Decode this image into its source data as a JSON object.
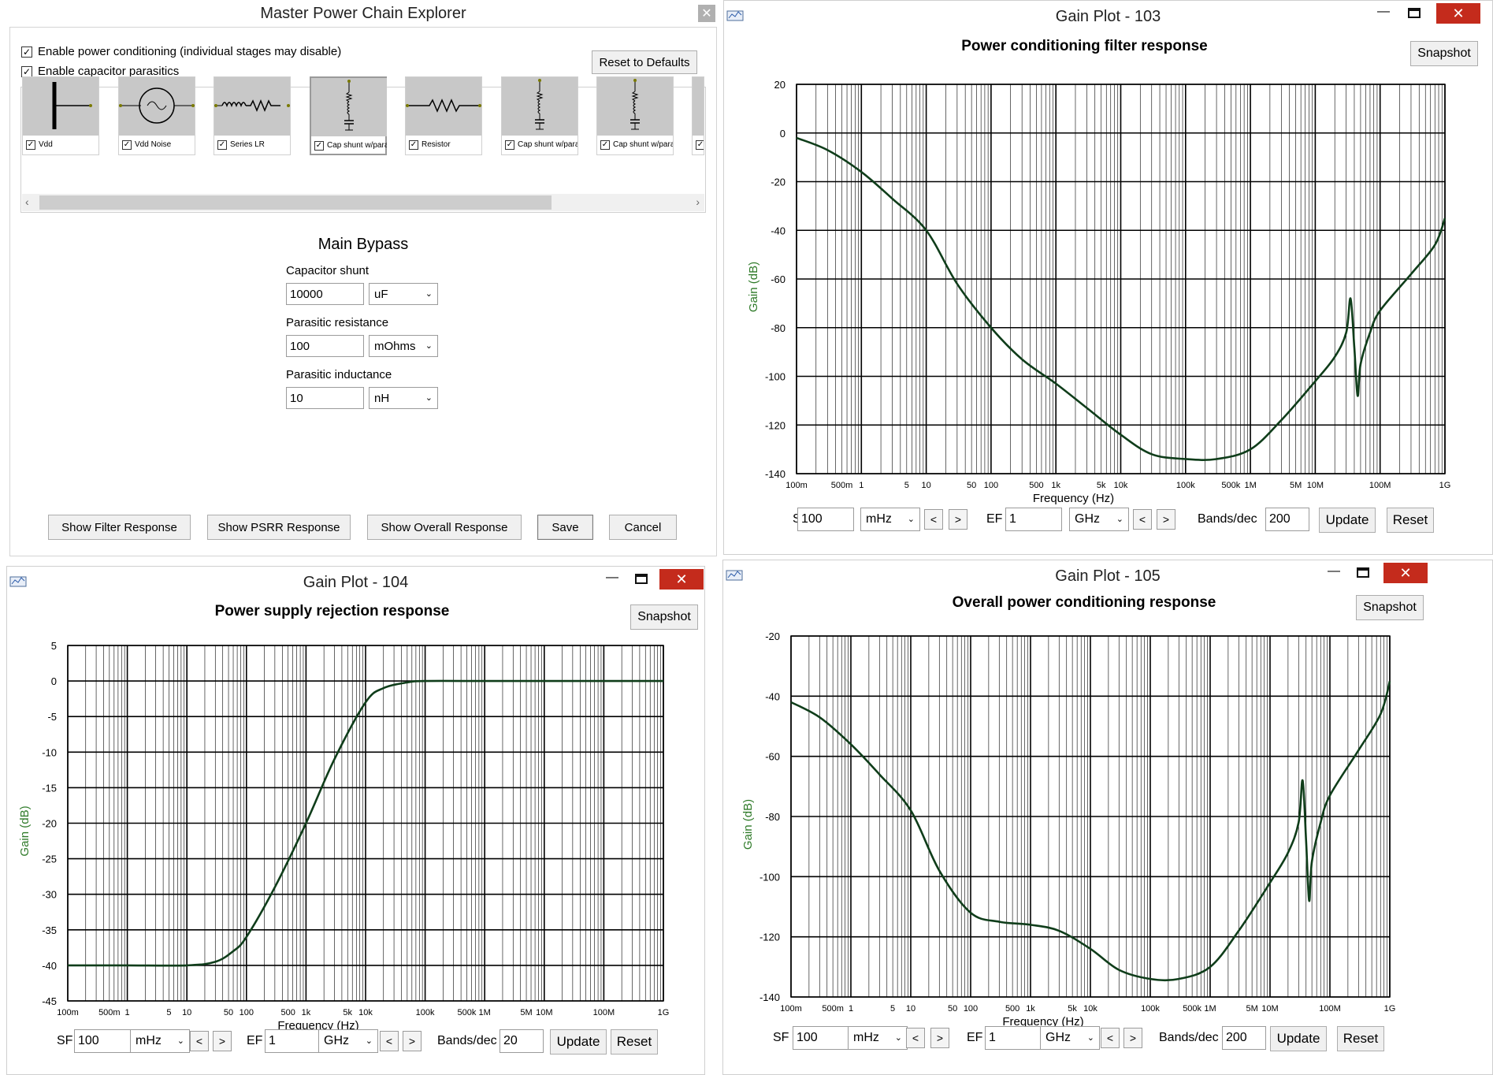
{
  "explorer": {
    "title": "Master Power Chain Explorer",
    "enable_conditioning": "Enable power conditioning (individual stages may disable)",
    "enable_parasitics": "Enable capacitor parasitics",
    "reset_defaults": "Reset to Defaults",
    "stages": [
      {
        "label": "Vdd",
        "icon": "vdd-source-icon"
      },
      {
        "label": "Vdd Noise",
        "icon": "ac-noise-source-icon"
      },
      {
        "label": "Series LR",
        "icon": "inductor-resistor-icon"
      },
      {
        "label": "Cap shunt w/paras",
        "icon": "capacitor-shunt-icon"
      },
      {
        "label": "Resistor",
        "icon": "resistor-icon"
      },
      {
        "label": "Cap shunt w/paras",
        "icon": "capacitor-shunt-icon"
      },
      {
        "label": "Cap shunt w/paras",
        "icon": "capacitor-shunt-icon"
      }
    ],
    "section_title": "Main Bypass",
    "cap_label": "Capacitor shunt",
    "cap_value": "10000",
    "cap_unit": "uF",
    "res_label": "Parasitic resistance",
    "res_value": "100",
    "res_unit": "mOhms",
    "ind_label": "Parasitic inductance",
    "ind_value": "10",
    "ind_unit": "nH",
    "buttons": {
      "filter": "Show Filter Response",
      "psrr": "Show PSRR Response",
      "overall": "Show Overall Response",
      "save": "Save",
      "cancel": "Cancel"
    }
  },
  "plots": [
    {
      "window_title": "Gain Plot - 103",
      "plot_title": "Power conditioning filter response",
      "snapshot": "Snapshot",
      "ylabel": "Gain (dB)",
      "xlabel": "Frequency (Hz)",
      "sf_label": "SF",
      "sf_value": "100",
      "sf_unit": "mHz",
      "ef_label": "EF",
      "ef_value": "1",
      "ef_unit": "GHz",
      "bands_label": "Bands/dec",
      "bands_value": "200",
      "update": "Update",
      "reset": "Reset",
      "nav_prev": "<",
      "nav_next": ">"
    },
    {
      "window_title": "Gain Plot - 104",
      "plot_title": "Power supply rejection response",
      "snapshot": "Snapshot",
      "ylabel": "Gain (dB)",
      "xlabel": "Frequency (Hz)",
      "sf_label": "SF",
      "sf_value": "100",
      "sf_unit": "mHz",
      "ef_label": "EF",
      "ef_value": "1",
      "ef_unit": "GHz",
      "bands_label": "Bands/dec",
      "bands_value": "20",
      "update": "Update",
      "reset": "Reset",
      "nav_prev": "<",
      "nav_next": ">"
    },
    {
      "window_title": "Gain Plot - 105",
      "plot_title": "Overall power conditioning response",
      "snapshot": "Snapshot",
      "ylabel": "Gain (dB)",
      "xlabel": "Frequency (Hz)",
      "sf_label": "SF",
      "sf_value": "100",
      "sf_unit": "mHz",
      "ef_label": "EF",
      "ef_value": "1",
      "ef_unit": "GHz",
      "bands_label": "Bands/dec",
      "bands_value": "200",
      "update": "Update",
      "reset": "Reset",
      "nav_prev": "<",
      "nav_next": ">"
    }
  ],
  "chart_data": [
    {
      "type": "line",
      "title": "Power conditioning filter response",
      "xlabel": "Frequency (Hz)",
      "ylabel": "Gain (dB)",
      "xscale": "log",
      "xlim": [
        0.1,
        1000000000
      ],
      "ylim": [
        -140,
        20
      ],
      "yticks": [
        20,
        0,
        -20,
        -40,
        -60,
        -80,
        -100,
        -120,
        -140
      ],
      "xtick_labels": [
        {
          "x": 0.1,
          "label": "100m"
        },
        {
          "x": 0.5,
          "label": "500m"
        },
        {
          "x": 1,
          "label": "1"
        },
        {
          "x": 5,
          "label": "5"
        },
        {
          "x": 10,
          "label": "10"
        },
        {
          "x": 50,
          "label": "50"
        },
        {
          "x": 100,
          "label": "100"
        },
        {
          "x": 500,
          "label": "500"
        },
        {
          "x": 1000,
          "label": "1k"
        },
        {
          "x": 5000,
          "label": "5k"
        },
        {
          "x": 10000,
          "label": "10k"
        },
        {
          "x": 100000,
          "label": "100k"
        },
        {
          "x": 500000,
          "label": "500k"
        },
        {
          "x": 1000000,
          "label": "1M"
        },
        {
          "x": 5000000,
          "label": "5M"
        },
        {
          "x": 10000000,
          "label": "10M"
        },
        {
          "x": 100000000,
          "label": "100M"
        },
        {
          "x": 1000000000,
          "label": "1G"
        }
      ],
      "grid": true,
      "color": "#0f3d1a",
      "series": [
        {
          "x": [
            0.1,
            0.3,
            1,
            3,
            10,
            30,
            100,
            300,
            1000,
            3000,
            10000,
            30000,
            100000,
            300000,
            1000000,
            3000000,
            10000000,
            20000000,
            30000000,
            35000000,
            40000000,
            45000000,
            50000000,
            70000000,
            100000000,
            300000000,
            700000000,
            1000000000
          ],
          "y": [
            -2,
            -7,
            -16,
            -27,
            -40,
            -62,
            -80,
            -93,
            -103,
            -113,
            -124,
            -132,
            -134,
            -134,
            -130,
            -118,
            -102,
            -92,
            -82,
            -68,
            -88,
            -108,
            -95,
            -82,
            -73,
            -58,
            -46,
            -35
          ]
        }
      ]
    },
    {
      "type": "line",
      "title": "Power supply rejection response",
      "xlabel": "Frequency (Hz)",
      "ylabel": "Gain (dB)",
      "xscale": "log",
      "xlim": [
        0.1,
        1000000000
      ],
      "ylim": [
        -45,
        5
      ],
      "yticks": [
        5,
        0,
        -5,
        -10,
        -15,
        -20,
        -25,
        -30,
        -35,
        -40,
        -45
      ],
      "xtick_labels": [
        {
          "x": 0.1,
          "label": "100m"
        },
        {
          "x": 0.5,
          "label": "500m"
        },
        {
          "x": 1,
          "label": "1"
        },
        {
          "x": 5,
          "label": "5"
        },
        {
          "x": 10,
          "label": "10"
        },
        {
          "x": 50,
          "label": "50"
        },
        {
          "x": 100,
          "label": "100"
        },
        {
          "x": 500,
          "label": "500"
        },
        {
          "x": 1000,
          "label": "1k"
        },
        {
          "x": 5000,
          "label": "5k"
        },
        {
          "x": 10000,
          "label": "10k"
        },
        {
          "x": 100000,
          "label": "100k"
        },
        {
          "x": 500000,
          "label": "500k"
        },
        {
          "x": 1000000,
          "label": "1M"
        },
        {
          "x": 5000000,
          "label": "5M"
        },
        {
          "x": 10000000,
          "label": "10M"
        },
        {
          "x": 100000000,
          "label": "100M"
        },
        {
          "x": 1000000000,
          "label": "1G"
        }
      ],
      "grid": true,
      "color": "#0f3d1a",
      "series": [
        {
          "x": [
            0.1,
            1,
            10,
            30,
            60,
            100,
            300,
            1000,
            3000,
            10000,
            20000,
            50000,
            100000,
            1000000,
            10000000,
            1000000000
          ],
          "y": [
            -40,
            -40,
            -40,
            -39.5,
            -38,
            -36,
            -29,
            -20,
            -11,
            -3,
            -1,
            -0.2,
            0,
            0,
            0,
            0
          ]
        }
      ]
    },
    {
      "type": "line",
      "title": "Overall power conditioning response",
      "xlabel": "Frequency (Hz)",
      "ylabel": "Gain (dB)",
      "xscale": "log",
      "xlim": [
        0.1,
        1000000000
      ],
      "ylim": [
        -140,
        -20
      ],
      "yticks": [
        -20,
        -40,
        -60,
        -80,
        -100,
        -120,
        -140
      ],
      "xtick_labels": [
        {
          "x": 0.1,
          "label": "100m"
        },
        {
          "x": 0.5,
          "label": "500m"
        },
        {
          "x": 1,
          "label": "1"
        },
        {
          "x": 5,
          "label": "5"
        },
        {
          "x": 10,
          "label": "10"
        },
        {
          "x": 50,
          "label": "50"
        },
        {
          "x": 100,
          "label": "100"
        },
        {
          "x": 500,
          "label": "500"
        },
        {
          "x": 1000,
          "label": "1k"
        },
        {
          "x": 5000,
          "label": "5k"
        },
        {
          "x": 10000,
          "label": "10k"
        },
        {
          "x": 100000,
          "label": "100k"
        },
        {
          "x": 500000,
          "label": "500k"
        },
        {
          "x": 1000000,
          "label": "1M"
        },
        {
          "x": 5000000,
          "label": "5M"
        },
        {
          "x": 10000000,
          "label": "10M"
        },
        {
          "x": 100000000,
          "label": "100M"
        },
        {
          "x": 1000000000,
          "label": "1G"
        }
      ],
      "grid": true,
      "color": "#0f3d1a",
      "series": [
        {
          "x": [
            0.1,
            0.3,
            1,
            3,
            10,
            30,
            100,
            300,
            1000,
            3000,
            10000,
            30000,
            100000,
            300000,
            1000000,
            3000000,
            10000000,
            20000000,
            30000000,
            35000000,
            40000000,
            45000000,
            50000000,
            70000000,
            100000000,
            300000000,
            700000000,
            1000000000
          ],
          "y": [
            -42,
            -47,
            -56,
            -66,
            -78,
            -98,
            -112,
            -115,
            -116,
            -118,
            -124,
            -131,
            -134,
            -134,
            -130,
            -118,
            -102,
            -92,
            -82,
            -68,
            -88,
            -108,
            -95,
            -82,
            -73,
            -58,
            -46,
            -35
          ]
        }
      ]
    }
  ]
}
